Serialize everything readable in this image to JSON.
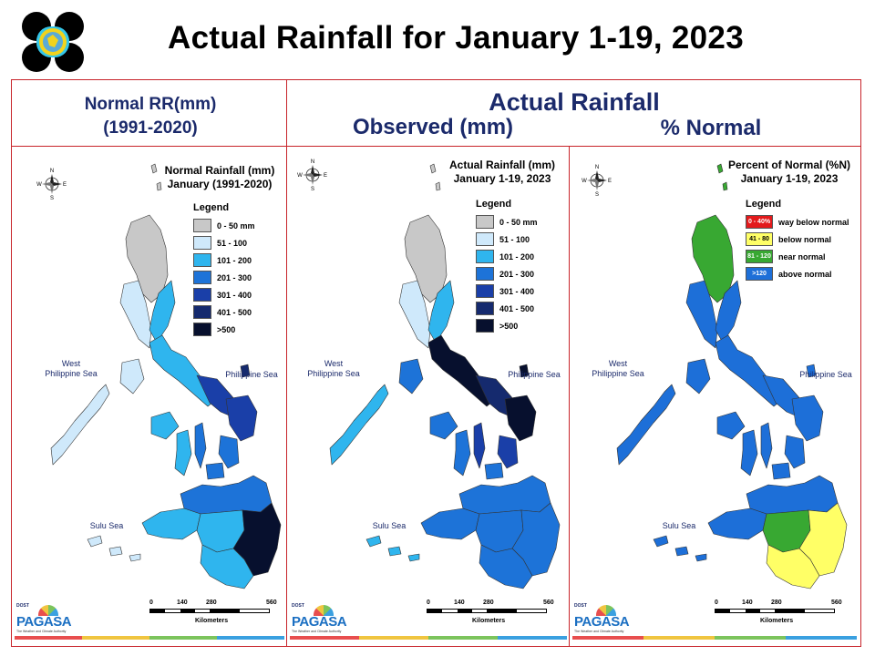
{
  "title": "Actual Rainfall for January 1-19, 2023",
  "headers": {
    "normal_line1": "Normal RR(mm)",
    "normal_line2": "(1991-2020)",
    "actual": "Actual Rainfall",
    "observed": "Observed (mm)",
    "percent": "% Normal"
  },
  "panels": [
    {
      "title_line1": "Normal Rainfall (mm)",
      "title_line2": "January (1991-2020)",
      "legend_title": "Legend",
      "legend": [
        {
          "label": "0 - 50 mm",
          "color": "#c8c8c8"
        },
        {
          "label": "51 - 100",
          "color": "#cfe9fb"
        },
        {
          "label": "101 - 200",
          "color": "#2fb5ee"
        },
        {
          "label": "201 - 300",
          "color": "#1d73d8"
        },
        {
          "label": "301 - 400",
          "color": "#1a3fa8"
        },
        {
          "label": "401 - 500",
          "color": "#152a6e"
        },
        {
          "label": ">500",
          "color": "#07102e"
        }
      ]
    },
    {
      "title_line1": "Actual Rainfall (mm)",
      "title_line2": "January 1-19, 2023",
      "legend_title": "Legend",
      "legend": [
        {
          "label": "0 - 50 mm",
          "color": "#c8c8c8"
        },
        {
          "label": "51 - 100",
          "color": "#cfe9fb"
        },
        {
          "label": "101 - 200",
          "color": "#2fb5ee"
        },
        {
          "label": "201 - 300",
          "color": "#1d73d8"
        },
        {
          "label": "301 - 400",
          "color": "#1a3fa8"
        },
        {
          "label": "401 - 500",
          "color": "#152a6e"
        },
        {
          "label": ">500",
          "color": "#07102e"
        }
      ]
    },
    {
      "title_line1": "Percent of Normal (%N)",
      "title_line2": "January 1-19, 2023",
      "legend_title": "Legend",
      "legend": [
        {
          "label": "way below normal",
          "range": "0 - 40%",
          "color": "#e31a1c"
        },
        {
          "label": "below normal",
          "range": "41 - 80",
          "color": "#ffff66"
        },
        {
          "label": "near normal",
          "range": "81 - 120",
          "color": "#38a832"
        },
        {
          "label": "above normal",
          "range": ">120",
          "color": "#1d6fd8"
        }
      ]
    }
  ],
  "seas": {
    "west_line1": "West",
    "west_line2": "Philippine Sea",
    "east": "Philippine Sea",
    "sulu": "Sulu Sea"
  },
  "compass": {
    "n": "N",
    "s": "S",
    "e": "E",
    "w": "W"
  },
  "scale": {
    "ticks": [
      "0",
      "140",
      "280",
      "560"
    ],
    "unit": "Kilometers"
  },
  "brand": {
    "dost": "DOST",
    "name": "PAGASA",
    "tagline": "The Weather and Climate Authority",
    "colors": [
      "#e84e4e",
      "#f0c540",
      "#7cc45c",
      "#3aa0e0"
    ]
  },
  "frame_color": "#c8242a",
  "header_color": "#1b2a6b"
}
